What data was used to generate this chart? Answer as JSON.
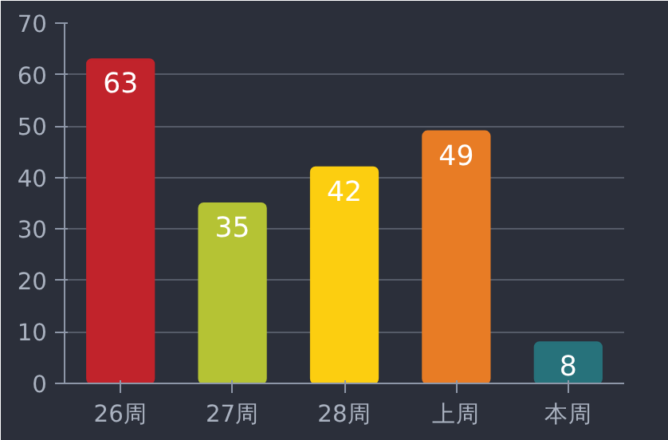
{
  "chart_data": {
    "type": "bar",
    "categories": [
      "26周",
      "27周",
      "28周",
      "上周",
      "本周"
    ],
    "values": [
      63,
      35,
      42,
      49,
      8
    ],
    "colors": [
      "#c1232b",
      "#b5c334",
      "#fcce10",
      "#e87c25",
      "#27727b"
    ],
    "ylim": [
      0,
      70
    ],
    "yticks": [
      0,
      10,
      20,
      30,
      40,
      50,
      60,
      70
    ],
    "grid": "y",
    "data_labels": true
  }
}
